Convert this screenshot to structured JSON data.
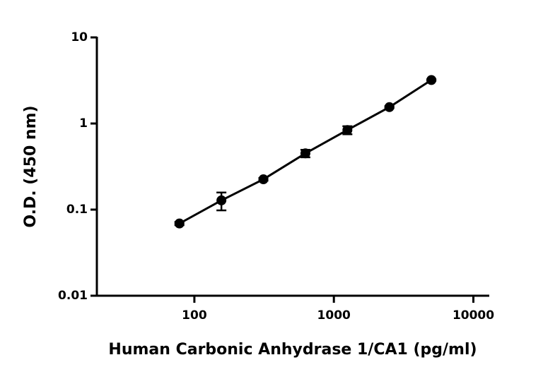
{
  "chart_data": {
    "type": "scatter",
    "x_label": "Human Carbonic Anhydrase 1/CA1 (pg/ml)",
    "y_label": "O.D. (450 nm)",
    "x": [
      78.125,
      156.25,
      312.5,
      625,
      1250,
      2500,
      5000
    ],
    "series": [
      {
        "color": "#000000",
        "values": [
          0.069,
          0.128,
          0.225,
          0.45,
          0.84,
          1.55,
          3.2
        ],
        "errors": [
          0.003,
          0.03,
          0.008,
          0.045,
          0.09,
          0.04,
          0.06
        ]
      }
    ],
    "xscale": "log",
    "yscale": "log",
    "xlim": [
      20,
      13000
    ],
    "ylim": [
      0.01,
      10
    ],
    "xticks": [
      100,
      1000,
      10000
    ],
    "yticks": [
      0.01,
      0.1,
      1,
      10
    ],
    "line": true
  }
}
